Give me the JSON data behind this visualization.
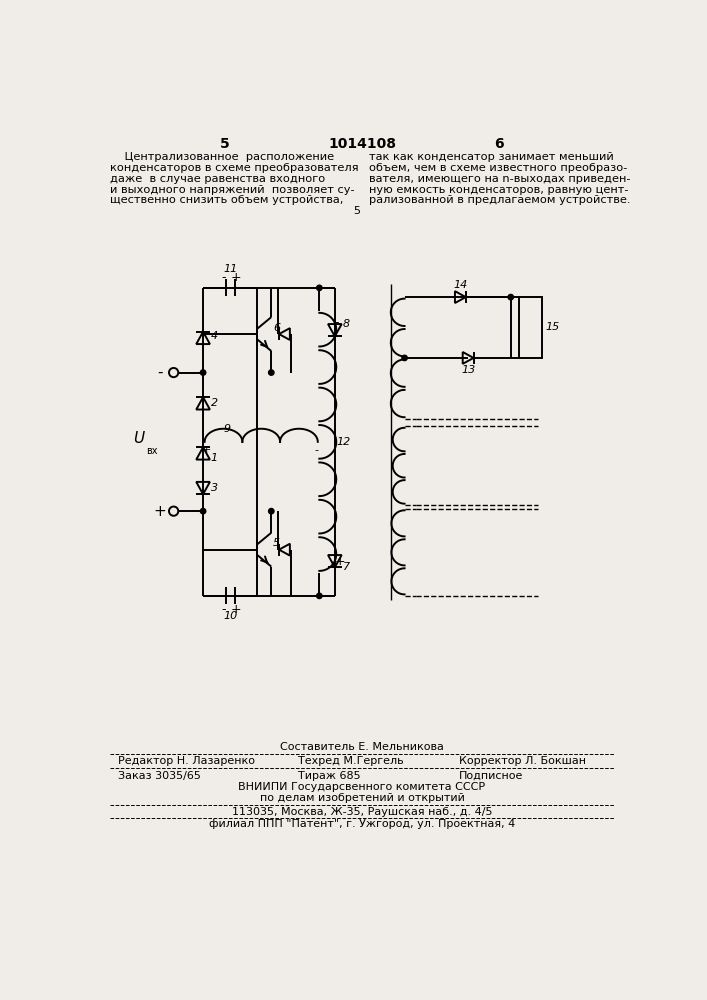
{
  "bg_color": "#f0ede8",
  "page_num_left": "5",
  "page_num_center": "1014108",
  "page_num_right": "6",
  "text_left_lines": [
    "    Централизованное  расположение",
    "конденсаторов в схеме преобразователя",
    "даже  в случае равенства входного",
    "и выходного напряжений  позволяет су-",
    "щественно снизить объем устройства,"
  ],
  "text_right_lines": [
    "так как конденсатор занимает меньший",
    "объем, чем в схеме известного преобразо-",
    "вателя, имеющего на n-выходах приведен-",
    "ную емкость конденсаторов, равную цент-",
    "рализованной в предлагаемом устройстве."
  ],
  "footer_composer": "Составитель Е. Мельникова",
  "footer_editor": "Редактор Н. Лазаренко",
  "footer_tech": "Техред М.Гергель",
  "footer_corrector": "Корректор Л. Бокшан",
  "footer_order": "Заказ 3035/65",
  "footer_print": "Тираж 685",
  "footer_signed": "Подписное",
  "footer_org1": "ВНИИПИ Государсвенного комитета СССР",
  "footer_org2": "по делам изобретений и открытий",
  "footer_addr": "113035, Москва, Ж-35, Раушская наб., д. 4/5",
  "footer_branch": "филиал ППП \"Патент\", г. Ужгород, ул. Проектная, 4"
}
